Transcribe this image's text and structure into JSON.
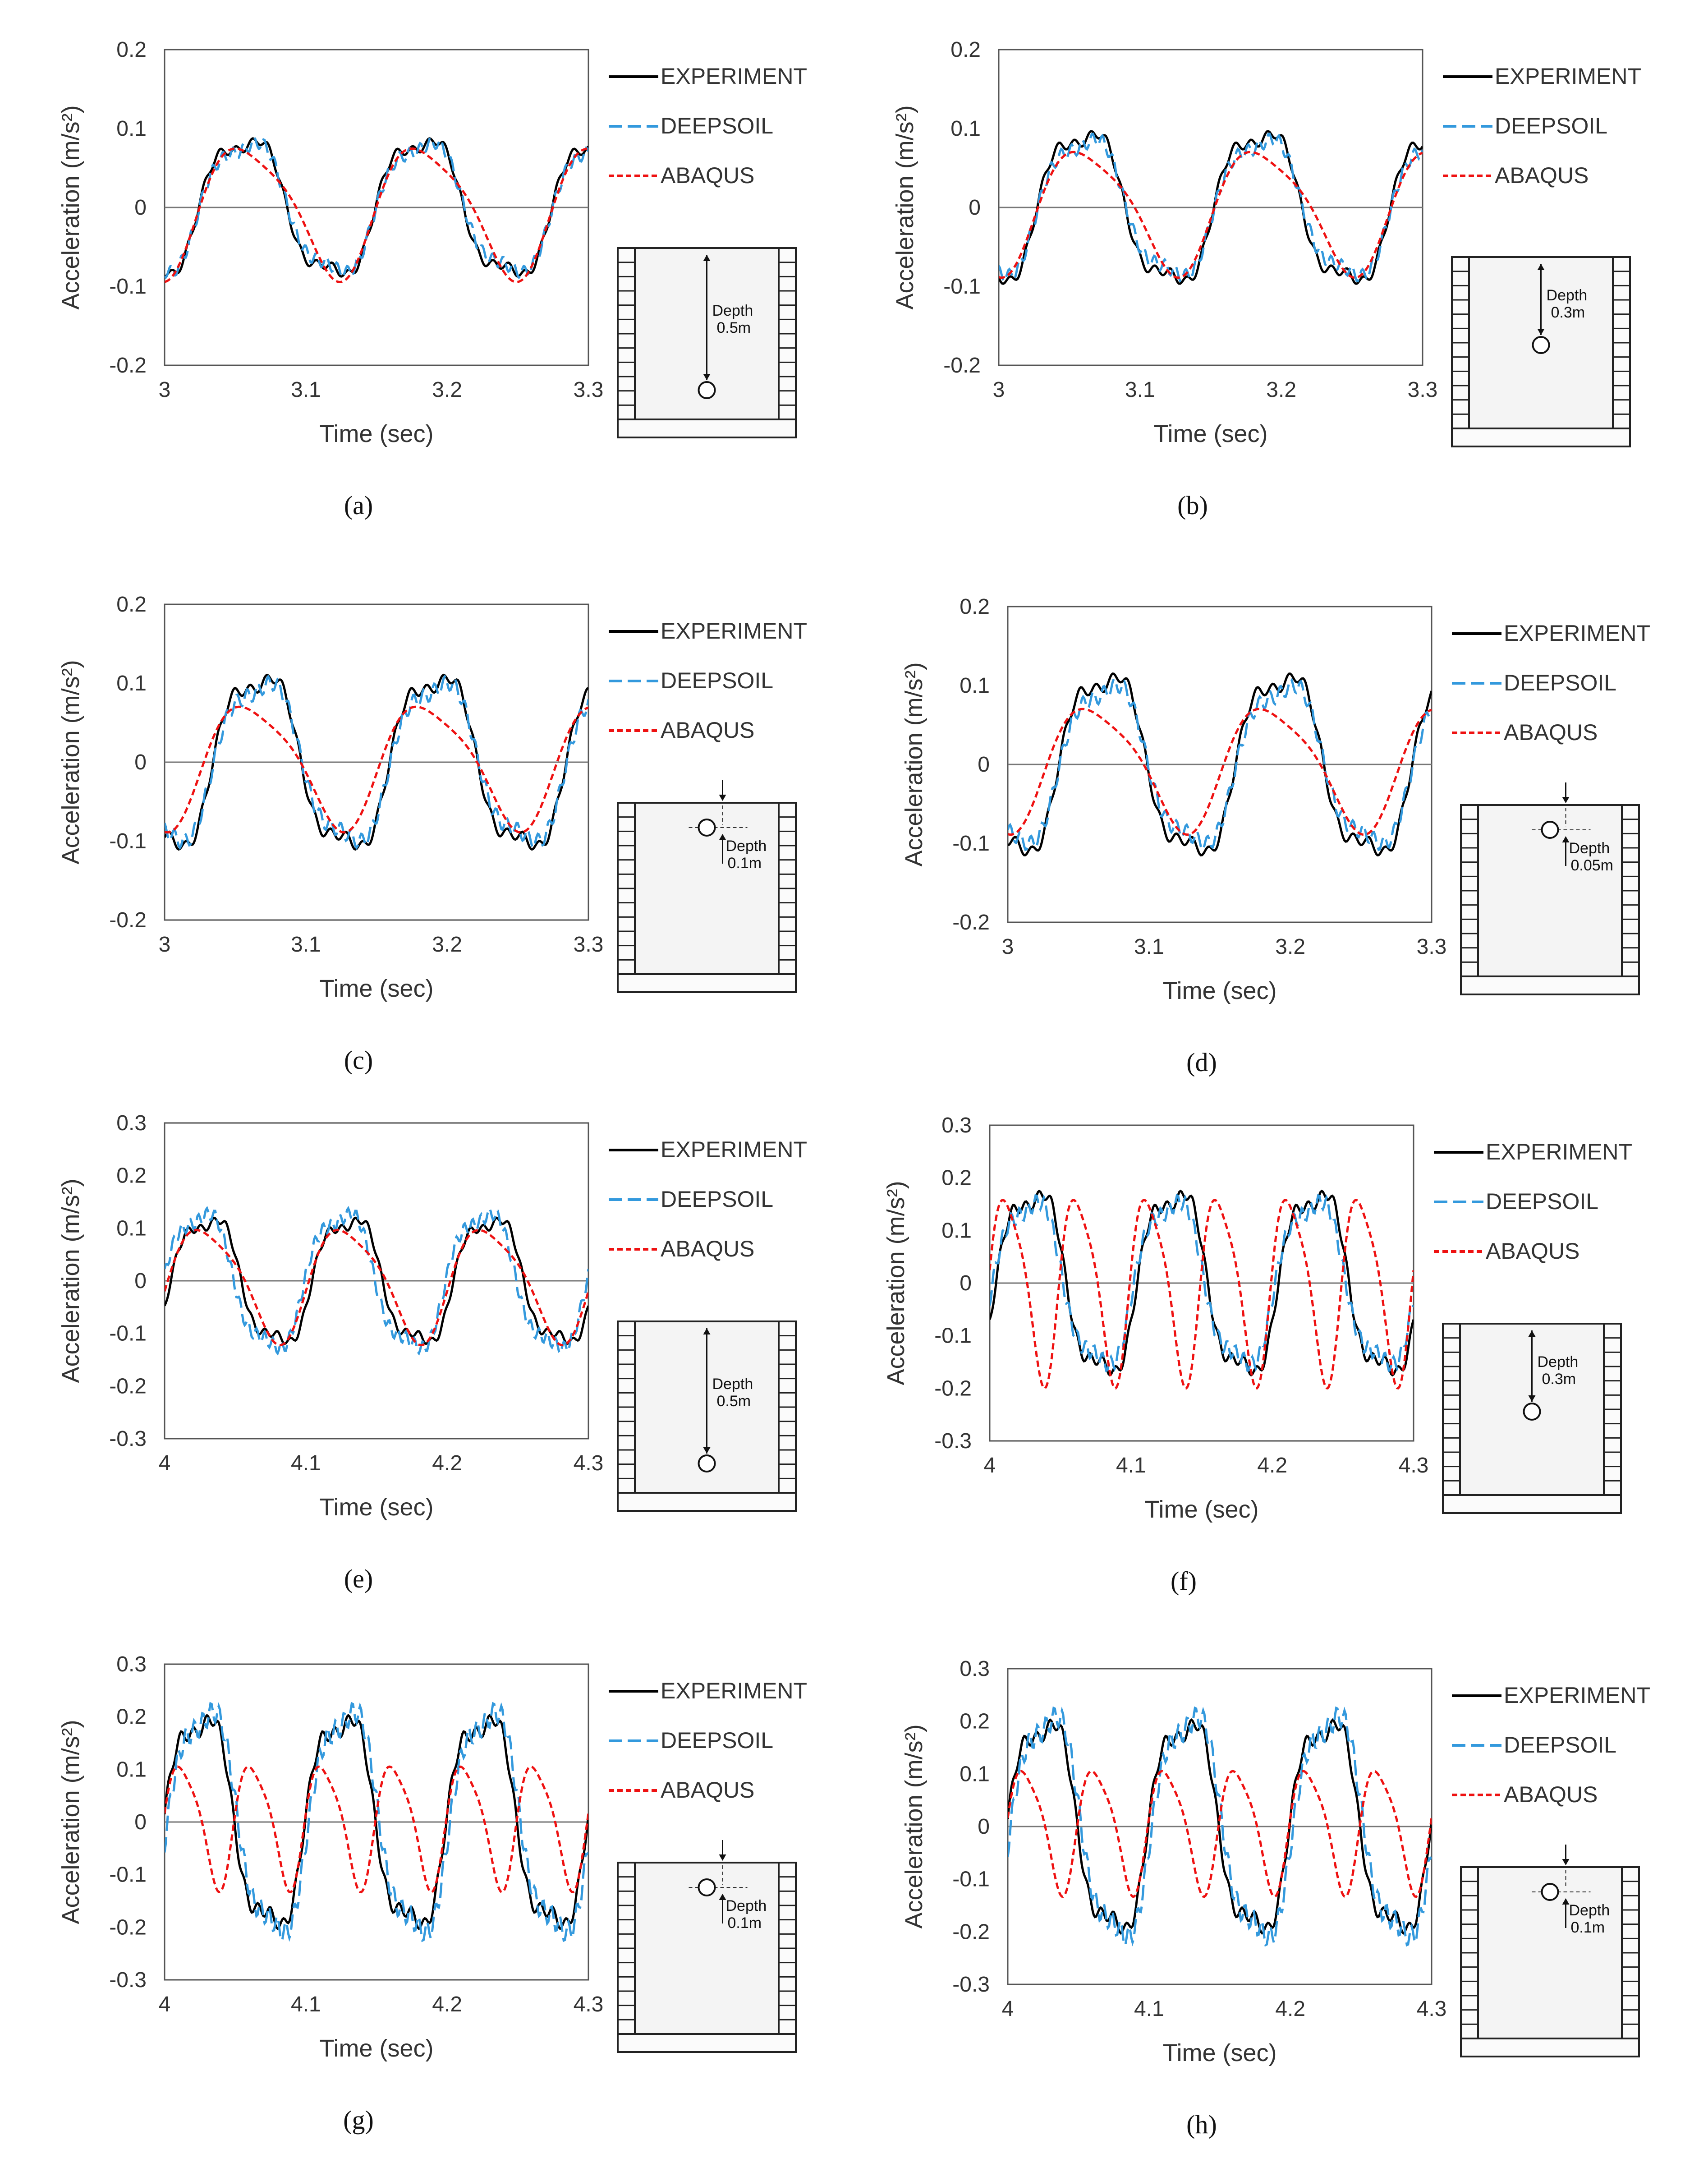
{
  "legend": {
    "experiment": "EXPERIMENT",
    "deepsoil": "DEEPSOIL",
    "abaqus": "ABAQUS"
  },
  "colors": {
    "experiment": "#000000",
    "deepsoil": "#3399dd",
    "abaqus": "#ee1111",
    "frame": "#555555"
  },
  "diagram_text": {
    "depth": "Depth"
  },
  "chart_data": [
    {
      "id": "a",
      "type": "line",
      "label": "(a)",
      "title": "",
      "xlabel": "Time (sec)",
      "ylabel": "Acceleration (m/s²)",
      "xlim": [
        3,
        3.3
      ],
      "ylim": [
        -0.2,
        0.2
      ],
      "xticks": [
        "3",
        "3.1",
        "3.2",
        "3.3"
      ],
      "yticks": [
        "0.2",
        "0.1",
        "0",
        "-0.1",
        "-0.2"
      ],
      "depth": "0.5m",
      "series": [
        {
          "name": "EXPERIMENT",
          "amplitude": 0.095,
          "period": 0.125,
          "phase": 3.025
        },
        {
          "name": "DEEPSOIL",
          "amplitude": 0.09,
          "period": 0.125,
          "phase": 3.026
        },
        {
          "name": "ABAQUS",
          "amplitude": 0.085,
          "period": 0.125,
          "phase": 3.027
        }
      ]
    },
    {
      "id": "b",
      "type": "line",
      "label": "(b)",
      "title": "",
      "xlabel": "Time (sec)",
      "ylabel": "Acceleration (m/s²)",
      "xlim": [
        3,
        3.3
      ],
      "ylim": [
        -0.2,
        0.2
      ],
      "xticks": [
        "3",
        "3.1",
        "3.2",
        "3.3"
      ],
      "yticks": [
        "0.2",
        "0.1",
        "0",
        "-0.1",
        "-0.2"
      ],
      "depth": "0.3m",
      "series": [
        {
          "name": "EXPERIMENT",
          "amplitude": 0.105,
          "period": 0.125,
          "phase": 3.028
        },
        {
          "name": "DEEPSOIL",
          "amplitude": 0.095,
          "period": 0.125,
          "phase": 3.029
        },
        {
          "name": "ABAQUS",
          "amplitude": 0.08,
          "period": 0.125,
          "phase": 3.03
        }
      ]
    },
    {
      "id": "c",
      "type": "line",
      "label": "(c)",
      "title": "",
      "xlabel": "Time (sec)",
      "ylabel": "Acceleration (m/s²)",
      "xlim": [
        3,
        3.3
      ],
      "ylim": [
        -0.2,
        0.2
      ],
      "xticks": [
        "3",
        "3.1",
        "3.2",
        "3.3"
      ],
      "yticks": [
        "0.2",
        "0.1",
        "0",
        "-0.1",
        "-0.2"
      ],
      "depth": "0.1m",
      "series": [
        {
          "name": "EXPERIMENT",
          "amplitude": 0.12,
          "period": 0.125,
          "phase": 3.035
        },
        {
          "name": "DEEPSOIL",
          "amplitude": 0.11,
          "period": 0.125,
          "phase": 3.036
        },
        {
          "name": "ABAQUS",
          "amplitude": 0.08,
          "period": 0.125,
          "phase": 3.03
        }
      ]
    },
    {
      "id": "d",
      "type": "line",
      "label": "(d)",
      "title": "",
      "xlabel": "Time (sec)",
      "ylabel": "Acceleration (m/s²)",
      "xlim": [
        3,
        3.3
      ],
      "ylim": [
        -0.2,
        0.2
      ],
      "xticks": [
        "3",
        "3.1",
        "3.2",
        "3.3"
      ],
      "yticks": [
        "0.2",
        "0.1",
        "0",
        "-0.1",
        "-0.2"
      ],
      "depth": "0.05m",
      "series": [
        {
          "name": "EXPERIMENT",
          "amplitude": 0.125,
          "period": 0.125,
          "phase": 3.037
        },
        {
          "name": "DEEPSOIL",
          "amplitude": 0.11,
          "period": 0.125,
          "phase": 3.038
        },
        {
          "name": "ABAQUS",
          "amplitude": 0.08,
          "period": 0.125,
          "phase": 3.03
        }
      ]
    },
    {
      "id": "e",
      "type": "line",
      "label": "(e)",
      "title": "",
      "xlabel": "Time (sec)",
      "ylabel": "Acceleration (m/s²)",
      "xlim": [
        4,
        4.3
      ],
      "ylim": [
        -0.3,
        0.3
      ],
      "xticks": [
        "4",
        "4.1",
        "4.2",
        "4.3"
      ],
      "yticks": [
        "0.3",
        "0.2",
        "0.1",
        "0",
        "-0.1",
        "-0.2",
        "-0.3"
      ],
      "depth": "0.5m",
      "series": [
        {
          "name": "EXPERIMENT",
          "amplitude": 0.13,
          "period": 0.1,
          "phase": 4.005
        },
        {
          "name": "DEEPSOIL",
          "amplitude": 0.14,
          "period": 0.1,
          "phase": 4.0
        },
        {
          "name": "ABAQUS",
          "amplitude": 0.11,
          "period": 0.1,
          "phase": 4.004
        }
      ]
    },
    {
      "id": "f",
      "type": "line",
      "label": "(f)",
      "title": "",
      "xlabel": "Time (sec)",
      "ylabel": "Acceleration (m/s²)",
      "xlim": [
        4,
        4.3
      ],
      "ylim": [
        -0.3,
        0.3
      ],
      "xticks": [
        "4",
        "4.1",
        "4.2",
        "4.3"
      ],
      "yticks": [
        "0.3",
        "0.2",
        "0.1",
        "0",
        "-0.1",
        "-0.2",
        "-0.3"
      ],
      "depth": "0.3m",
      "series": [
        {
          "name": "EXPERIMENT",
          "amplitude": 0.19,
          "period": 0.1,
          "phase": 4.005
        },
        {
          "name": "DEEPSOIL",
          "amplitude": 0.17,
          "period": 0.1,
          "phase": 4.003
        },
        {
          "name": "ABAQUS",
          "amplitude": 0.18,
          "period": 0.05,
          "phase": 4.0
        }
      ]
    },
    {
      "id": "g",
      "type": "line",
      "label": "(g)",
      "title": "",
      "xlabel": "Time (sec)",
      "ylabel": "Acceleration (m/s²)",
      "xlim": [
        4,
        4.3
      ],
      "ylim": [
        -0.3,
        0.3
      ],
      "xticks": [
        "4",
        "4.1",
        "4.2",
        "4.3"
      ],
      "yticks": [
        "0.3",
        "0.2",
        "0.1",
        "0",
        "-0.1",
        "-0.2",
        "-0.3"
      ],
      "depth": "0.1m",
      "series": [
        {
          "name": "EXPERIMENT",
          "amplitude": 0.22,
          "period": 0.1,
          "phase": 4.0
        },
        {
          "name": "DEEPSOIL",
          "amplitude": 0.23,
          "period": 0.1,
          "phase": 4.003
        },
        {
          "name": "ABAQUS",
          "amplitude": 0.12,
          "period": 0.05,
          "phase": 4.0
        }
      ]
    },
    {
      "id": "h",
      "type": "line",
      "label": "(h)",
      "title": "",
      "xlabel": "Time (sec)",
      "ylabel": "Acceleration (m/s²)",
      "xlim": [
        4,
        4.3
      ],
      "ylim": [
        -0.3,
        0.3
      ],
      "xticks": [
        "4",
        "4.1",
        "4.2",
        "4.3"
      ],
      "yticks": [
        "0.3",
        "0.2",
        "0.1",
        "0",
        "-0.1",
        "-0.2",
        "-0.3"
      ],
      "depth": "0.1m",
      "series": [
        {
          "name": "EXPERIMENT",
          "amplitude": 0.22,
          "period": 0.1,
          "phase": 4.0
        },
        {
          "name": "DEEPSOIL",
          "amplitude": 0.23,
          "period": 0.1,
          "phase": 4.003
        },
        {
          "name": "ABAQUS",
          "amplitude": 0.12,
          "period": 0.05,
          "phase": 4.0
        }
      ]
    }
  ]
}
